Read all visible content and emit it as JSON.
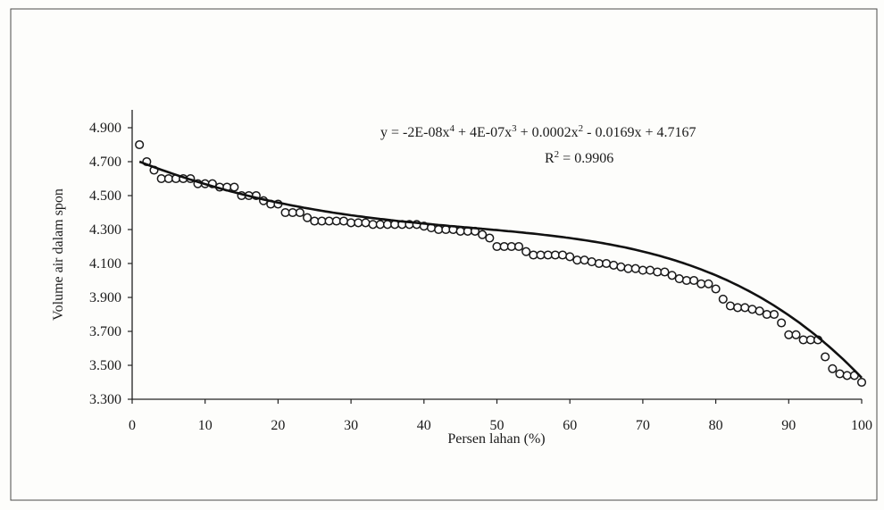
{
  "chart_data": {
    "type": "scatter",
    "title": "",
    "xlabel": "Persen lahan (%)",
    "ylabel": "Volume air dalam spon",
    "xlim": [
      0,
      100
    ],
    "ylim": [
      3.3,
      4.9
    ],
    "x_ticks": [
      "0",
      "10",
      "20",
      "30",
      "40",
      "50",
      "60",
      "70",
      "80",
      "90",
      "100"
    ],
    "y_ticks": [
      "3.300",
      "3.500",
      "3.700",
      "3.900",
      "4.100",
      "4.300",
      "4.500",
      "4.700",
      "4.900"
    ],
    "grid": false,
    "legend": "none",
    "trendline": {
      "type": "polynomial",
      "order": 4,
      "coefficients": {
        "a4": -2e-08,
        "a3": 4e-07,
        "a2": 0.0002,
        "a1": -0.0169,
        "a0": 4.7167
      },
      "equation_parts": {
        "y_eq": "y = -2E-08x",
        "p4": "4",
        "t3": " + 4E-07x",
        "p3": "3",
        "t2": " + 0.0002x",
        "p2": "2",
        "rest": " - 0.0169x + 4.7167"
      },
      "r2_parts": {
        "r": "R",
        "sup": "2",
        "value": " = 0.9906"
      }
    },
    "series": [
      {
        "x": [
          1,
          2,
          3,
          4,
          5,
          6,
          7,
          8,
          9,
          10,
          11,
          12,
          13,
          14,
          15,
          16,
          17,
          18,
          19,
          20,
          21,
          22,
          23,
          24,
          25,
          26,
          27,
          28,
          29,
          30,
          31,
          32,
          33,
          34,
          35,
          36,
          37,
          38,
          39,
          40,
          41,
          42,
          43,
          44,
          45,
          46,
          47,
          48,
          49,
          50,
          51,
          52,
          53,
          54,
          55,
          56,
          57,
          58,
          59,
          60,
          61,
          62,
          63,
          64,
          65,
          66,
          67,
          68,
          69,
          70,
          71,
          72,
          73,
          74,
          75,
          76,
          77,
          78,
          79,
          80,
          81,
          82,
          83,
          84,
          85,
          86,
          87,
          88,
          89,
          90,
          91,
          92,
          93,
          94,
          95,
          96,
          97,
          98,
          99,
          100
        ],
        "y": [
          4.8,
          4.7,
          4.65,
          4.6,
          4.6,
          4.6,
          4.6,
          4.6,
          4.57,
          4.57,
          4.57,
          4.55,
          4.55,
          4.55,
          4.5,
          4.5,
          4.5,
          4.47,
          4.45,
          4.45,
          4.4,
          4.4,
          4.4,
          4.37,
          4.35,
          4.35,
          4.35,
          4.35,
          4.35,
          4.34,
          4.34,
          4.34,
          4.33,
          4.33,
          4.33,
          4.33,
          4.33,
          4.33,
          4.33,
          4.32,
          4.31,
          4.3,
          4.3,
          4.3,
          4.29,
          4.29,
          4.29,
          4.27,
          4.25,
          4.2,
          4.2,
          4.2,
          4.2,
          4.17,
          4.15,
          4.15,
          4.15,
          4.15,
          4.15,
          4.14,
          4.12,
          4.12,
          4.11,
          4.1,
          4.1,
          4.09,
          4.08,
          4.07,
          4.07,
          4.06,
          4.06,
          4.05,
          4.05,
          4.03,
          4.01,
          4.0,
          4.0,
          3.98,
          3.98,
          3.95,
          3.89,
          3.85,
          3.84,
          3.84,
          3.83,
          3.82,
          3.8,
          3.8,
          3.75,
          3.68,
          3.68,
          3.65,
          3.65,
          3.65,
          3.55,
          3.48,
          3.45,
          3.44,
          3.44,
          3.4
        ]
      }
    ]
  }
}
